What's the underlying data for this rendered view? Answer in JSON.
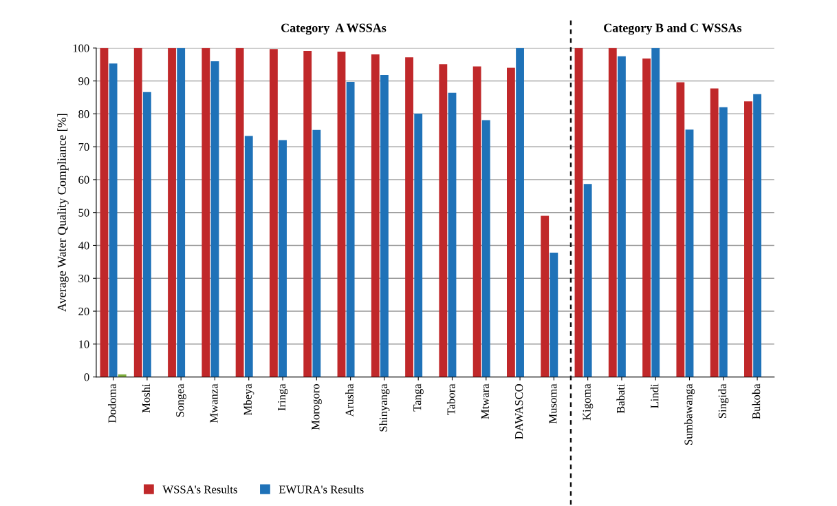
{
  "chart_data": {
    "type": "bar",
    "ylabel": "Average Water Quality Compliance [%]",
    "categories": [
      "Dodoma",
      "Moshi",
      "Songea",
      "Mwanza",
      "Mbeya",
      "Iringa",
      "Morogoro",
      "Arusha",
      "Shinyanga",
      "Tanga",
      "Tabora",
      "Mtwara",
      "DAWASCO",
      "Musoma",
      "Kigoma",
      "Babati",
      "Lindi",
      "Sumbawanga",
      "Singida",
      "Bukoba"
    ],
    "series": [
      {
        "name": "WSSA's Results",
        "color": "#c0282a",
        "values": [
          100,
          100,
          100,
          100,
          100,
          99.7,
          99.1,
          98.9,
          98.1,
          97.2,
          95.1,
          94.4,
          94,
          49,
          100,
          100,
          96.8,
          89.6,
          87.7,
          83.8
        ]
      },
      {
        "name": "EWURA's Results",
        "color": "#1f72b8",
        "values": [
          95.3,
          86.6,
          100,
          96,
          73.3,
          72,
          75.1,
          89.7,
          91.8,
          80.1,
          86.4,
          78.1,
          100,
          37.8,
          58.7,
          97.5,
          100,
          75.2,
          82,
          86
        ]
      },
      {
        "color": "#7fae3f",
        "values": [
          0.8,
          null,
          null,
          null,
          null,
          null,
          null,
          null,
          null,
          null,
          null,
          null,
          null,
          null,
          null,
          null,
          null,
          null,
          null,
          null
        ]
      }
    ],
    "ylim": [
      0,
      100
    ],
    "yticks": [
      0,
      10,
      20,
      30,
      40,
      50,
      60,
      70,
      80,
      90,
      100
    ],
    "grid": "y",
    "legend": "bottom",
    "annotations": [
      "Category  A WSSAs",
      "Category B and C WSSAs"
    ]
  }
}
